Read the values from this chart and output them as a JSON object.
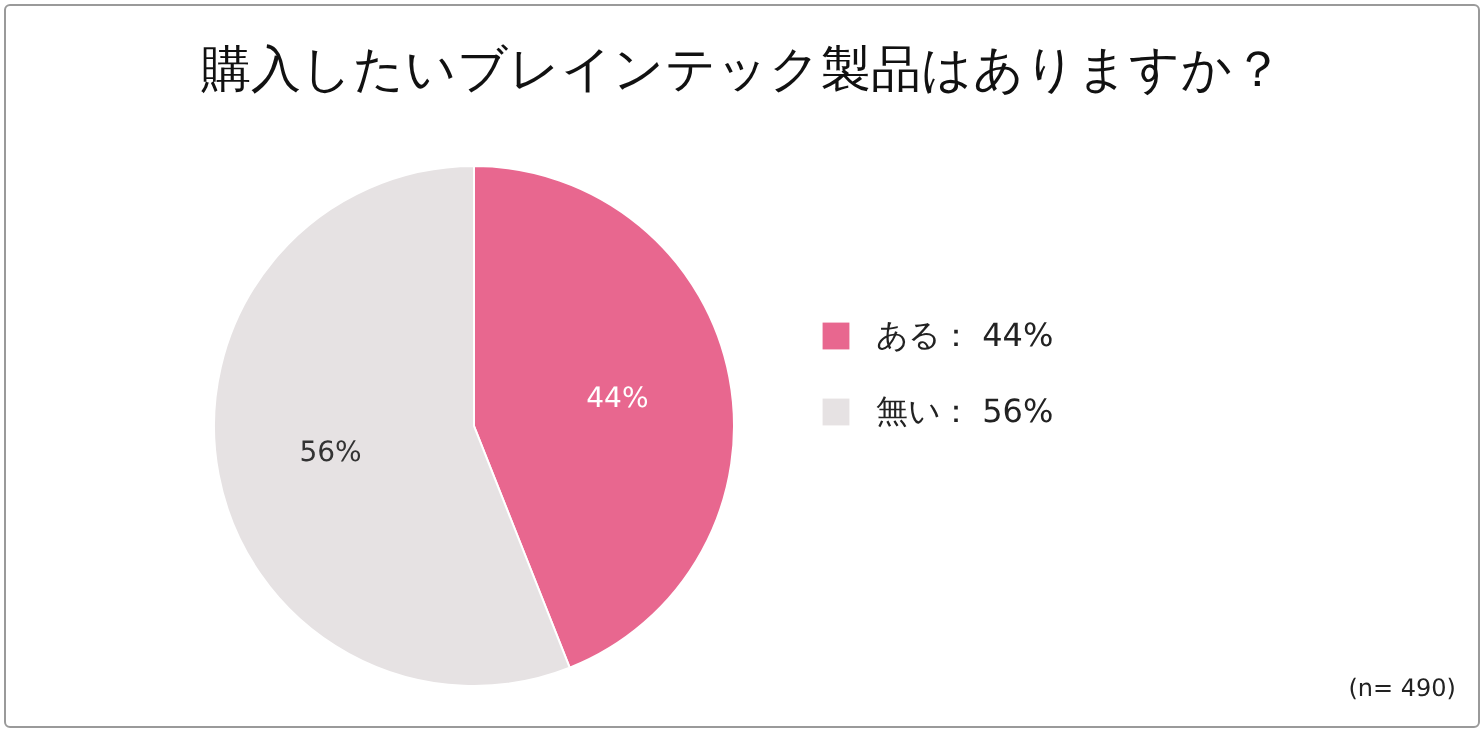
{
  "chart_data": {
    "type": "pie",
    "title": "購入したいブレインテック製品はありますか？",
    "categories": [
      "ある",
      "無い"
    ],
    "values": [
      44,
      56
    ],
    "colors": [
      "#e8678f",
      "#e6e2e3"
    ],
    "value_labels": [
      "44%",
      "56%"
    ],
    "legend": "right",
    "annotations": [
      "(n= 490)"
    ]
  }
}
